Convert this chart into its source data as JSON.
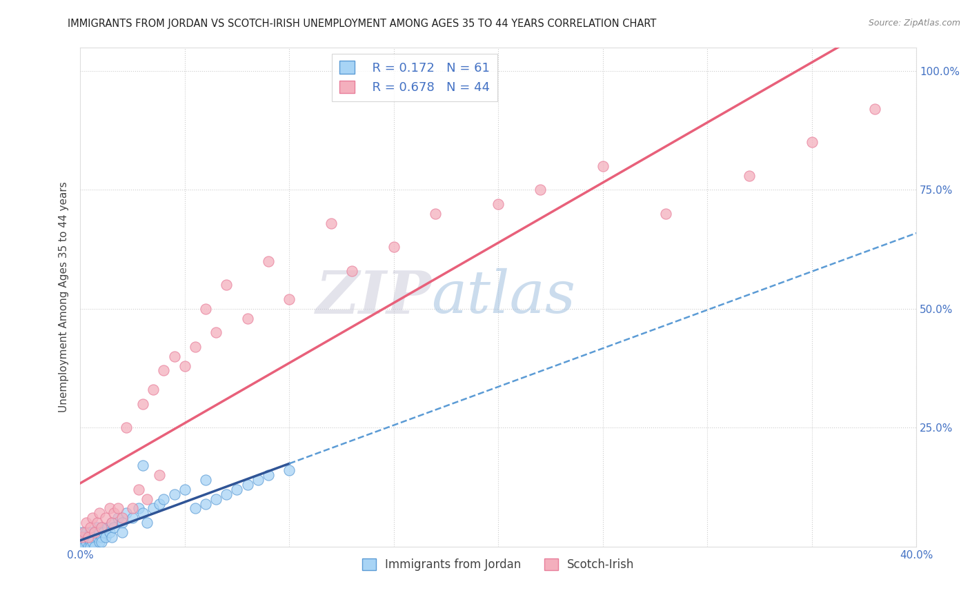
{
  "title": "IMMIGRANTS FROM JORDAN VS SCOTCH-IRISH UNEMPLOYMENT AMONG AGES 35 TO 44 YEARS CORRELATION CHART",
  "source": "Source: ZipAtlas.com",
  "ylabel": "Unemployment Among Ages 35 to 44 years",
  "xlim": [
    0.0,
    0.4
  ],
  "ylim": [
    0.0,
    1.05
  ],
  "xticks": [
    0.0,
    0.05,
    0.1,
    0.15,
    0.2,
    0.25,
    0.3,
    0.35,
    0.4
  ],
  "yticks": [
    0.0,
    0.25,
    0.5,
    0.75,
    1.0
  ],
  "series": [
    {
      "name": "Immigrants from Jordan",
      "R": 0.172,
      "N": 61,
      "color_scatter": "#A8D4F5",
      "color_scatter_edge": "#5B9BD5",
      "color_line_solid": "#2F5496",
      "color_line_dashed": "#5B9BD5",
      "jordan_x": [
        0.0,
        0.0,
        0.0,
        0.0,
        0.0,
        0.001,
        0.001,
        0.001,
        0.001,
        0.002,
        0.002,
        0.002,
        0.003,
        0.003,
        0.004,
        0.004,
        0.005,
        0.005,
        0.005,
        0.006,
        0.006,
        0.007,
        0.007,
        0.008,
        0.008,
        0.009,
        0.009,
        0.01,
        0.01,
        0.01,
        0.011,
        0.012,
        0.013,
        0.014,
        0.015,
        0.015,
        0.016,
        0.018,
        0.02,
        0.02,
        0.022,
        0.025,
        0.028,
        0.03,
        0.032,
        0.035,
        0.038,
        0.04,
        0.045,
        0.05,
        0.055,
        0.06,
        0.065,
        0.07,
        0.075,
        0.08,
        0.085,
        0.09,
        0.1,
        0.06,
        0.03
      ],
      "jordan_y": [
        0.0,
        0.0,
        0.01,
        0.02,
        0.0,
        0.01,
        0.0,
        0.02,
        0.03,
        0.01,
        0.02,
        0.0,
        0.01,
        0.03,
        0.02,
        0.0,
        0.01,
        0.03,
        0.0,
        0.02,
        0.01,
        0.03,
        0.0,
        0.02,
        0.04,
        0.01,
        0.03,
        0.02,
        0.04,
        0.01,
        0.03,
        0.02,
        0.04,
        0.03,
        0.05,
        0.02,
        0.04,
        0.06,
        0.05,
        0.03,
        0.07,
        0.06,
        0.08,
        0.07,
        0.05,
        0.08,
        0.09,
        0.1,
        0.11,
        0.12,
        0.08,
        0.09,
        0.1,
        0.11,
        0.12,
        0.13,
        0.14,
        0.15,
        0.16,
        0.14,
        0.17
      ]
    },
    {
      "name": "Scotch-Irish",
      "R": 0.678,
      "N": 44,
      "color_scatter": "#F4AFBD",
      "color_scatter_edge": "#E87E9A",
      "color_line": "#E8607A",
      "scotch_x": [
        0.001,
        0.002,
        0.003,
        0.004,
        0.005,
        0.006,
        0.007,
        0.008,
        0.009,
        0.01,
        0.012,
        0.014,
        0.015,
        0.016,
        0.018,
        0.02,
        0.022,
        0.025,
        0.028,
        0.03,
        0.032,
        0.035,
        0.038,
        0.04,
        0.045,
        0.05,
        0.055,
        0.06,
        0.065,
        0.07,
        0.08,
        0.09,
        0.1,
        0.12,
        0.13,
        0.15,
        0.17,
        0.2,
        0.22,
        0.25,
        0.28,
        0.32,
        0.35,
        0.38
      ],
      "scotch_y": [
        0.02,
        0.03,
        0.05,
        0.02,
        0.04,
        0.06,
        0.03,
        0.05,
        0.07,
        0.04,
        0.06,
        0.08,
        0.05,
        0.07,
        0.08,
        0.06,
        0.25,
        0.08,
        0.12,
        0.3,
        0.1,
        0.33,
        0.15,
        0.37,
        0.4,
        0.38,
        0.42,
        0.5,
        0.45,
        0.55,
        0.48,
        0.6,
        0.52,
        0.68,
        0.58,
        0.63,
        0.7,
        0.72,
        0.75,
        0.8,
        0.7,
        0.78,
        0.85,
        0.92
      ]
    }
  ],
  "bg_color": "#FFFFFF",
  "grid_color": "#CCCCCC",
  "title_color": "#222222",
  "label_color": "#4472C4",
  "axis_label_color": "#444444",
  "watermark_zip_color": "#BBBBCC",
  "watermark_atlas_color": "#99BBDD"
}
